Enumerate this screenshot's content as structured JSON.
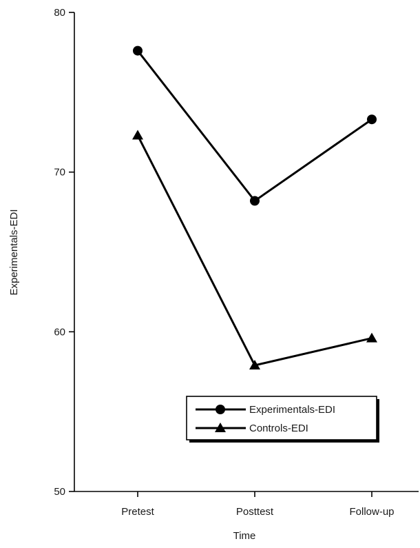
{
  "chart_data": {
    "type": "line",
    "title": "",
    "xlabel": "Time",
    "ylabel": "Experimentals-EDI",
    "categories": [
      "Pretest",
      "Posttest",
      "Follow-up"
    ],
    "ylim": [
      50,
      80
    ],
    "yticks": [
      50,
      60,
      70,
      80
    ],
    "grid": false,
    "legend_position": "bottom-right",
    "series": [
      {
        "name": "Experimentals-EDI",
        "marker": "circle",
        "color": "#000000",
        "values": [
          77.6,
          68.2,
          73.3
        ]
      },
      {
        "name": "Controls-EDI",
        "marker": "triangle",
        "color": "#000000",
        "values": [
          72.3,
          57.9,
          59.6
        ]
      }
    ]
  }
}
